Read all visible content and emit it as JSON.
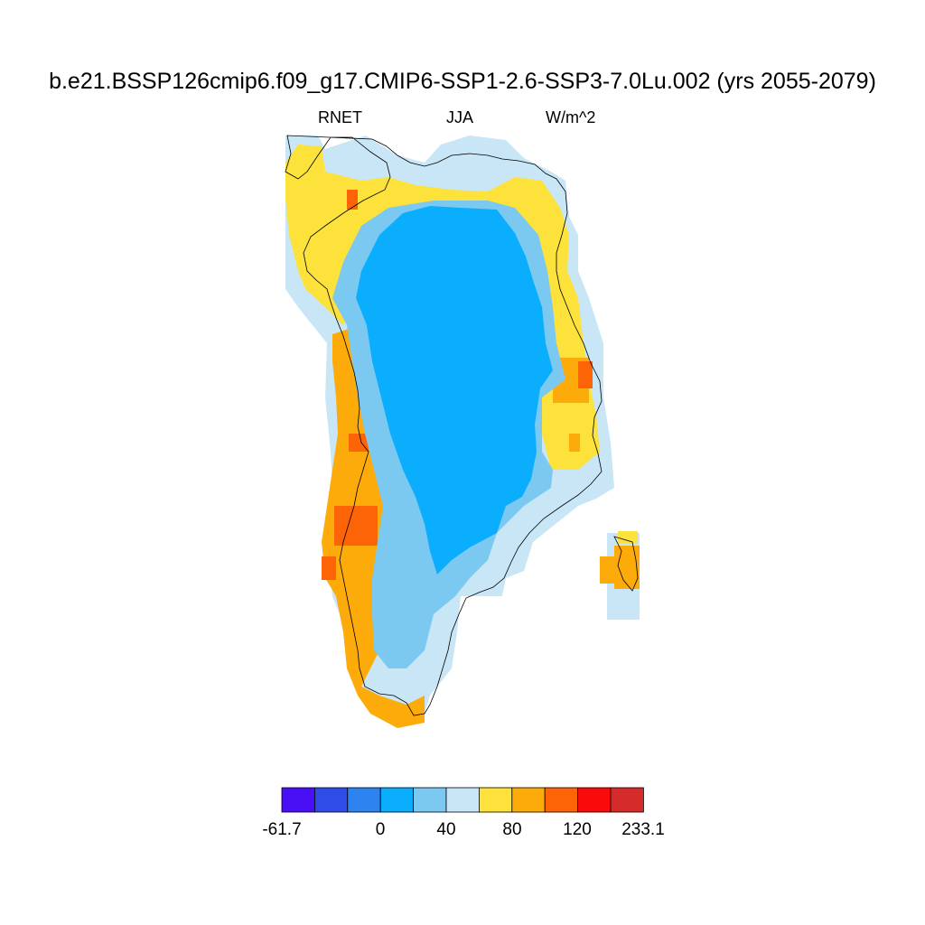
{
  "title": "b.e21.BSSP126cmip6.f09_g17.CMIP6-SSP1-2.6-SSP3-7.0Lu.002 (yrs 2055-2079)",
  "variable": "RNET",
  "season": "JJA",
  "units": "W/m^2",
  "colorbar": {
    "colors": [
      "#4a10f5",
      "#2e4de6",
      "#2d83f0",
      "#0aaefd",
      "#7bc9f0",
      "#c9e6f6",
      "#fde23c",
      "#fdab0a",
      "#fd6408",
      "#fa0a0a",
      "#d62b2b"
    ],
    "tick_labels": [
      "-61.7",
      "0",
      "40",
      "80",
      "120",
      "233.1"
    ]
  },
  "map_layers": {
    "interior_ice_sheet": "#0aaefd",
    "ice_margin": "#7bc9f0",
    "outer_margin": "#c9e6f6",
    "coastal_low": "#fde23c",
    "coastal_mid": "#fdab0a",
    "coastal_high": "#fd6408"
  }
}
